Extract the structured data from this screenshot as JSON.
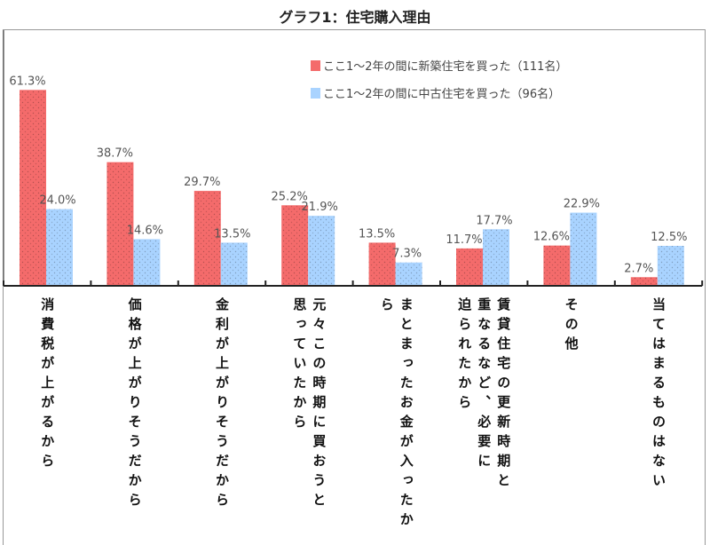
{
  "chart_data": {
    "type": "bar",
    "title": "グラフ1：住宅購入理由",
    "categories": [
      "消費税が上がるから",
      "価格が上がりそうだから",
      "金利が上がりそうだから",
      "元々この時期に買おうと\n思っていたから",
      "まとまったお金が入ったか\nら",
      "賃貸住宅の更新時期と\n重なるなど、必要に\n迫られたから",
      "その他",
      "当てはまるものはない"
    ],
    "series": [
      {
        "name": "ここ1～2年の間に新築住宅を買った（111名）",
        "color": "#f46b6b",
        "values": [
          61.3,
          38.7,
          29.7,
          25.2,
          13.5,
          11.7,
          12.6,
          2.7
        ]
      },
      {
        "name": "ここ1～2年の間に中古住宅を買った（96名）",
        "color": "#a9d3ff",
        "values": [
          24.0,
          14.6,
          13.5,
          21.9,
          7.3,
          17.7,
          22.9,
          12.5
        ]
      }
    ],
    "value_labels_format": "%",
    "ylim": [
      0,
      65
    ],
    "legend": "top-right",
    "grid": false
  }
}
